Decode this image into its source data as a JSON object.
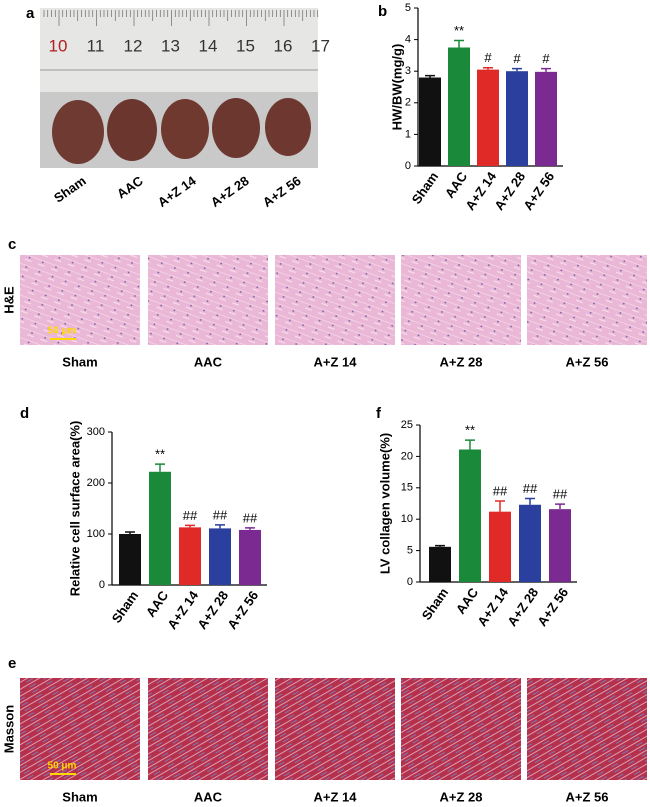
{
  "panel_a": {
    "label": "a",
    "ruler_numbers": [
      "10",
      "11",
      "12",
      "13",
      "14",
      "15",
      "16",
      "17"
    ],
    "groups": [
      "Sham",
      "AAC",
      "A+Z 14",
      "A+Z 28",
      "A+Z 56"
    ]
  },
  "panel_c": {
    "label": "c",
    "stain": "H&E",
    "scale_bar": "50 μm",
    "groups": [
      "Sham",
      "AAC",
      "A+Z 14",
      "A+Z 28",
      "A+Z 56"
    ]
  },
  "panel_e": {
    "label": "e",
    "stain": "Masson",
    "scale_bar": "50 μm",
    "groups": [
      "Sham",
      "AAC",
      "A+Z 14",
      "A+Z 28",
      "A+Z 56"
    ]
  },
  "chart_data": [
    {
      "type": "bar",
      "panel": "b",
      "ylabel": "HW/BW(mg/g)",
      "categories": [
        "Sham",
        "AAC",
        "A+Z 14",
        "A+Z 28",
        "A+Z 56"
      ],
      "values": [
        2.8,
        3.75,
        3.05,
        3.0,
        2.98
      ],
      "errors": [
        0.06,
        0.22,
        0.06,
        0.08,
        0.1
      ],
      "annotations": [
        null,
        "**",
        "#",
        "#",
        "#"
      ],
      "colors": [
        "#111111",
        "#1a8a3a",
        "#e02a27",
        "#2a3f9e",
        "#7b2a92"
      ],
      "ylim": [
        0,
        5
      ],
      "yticks": [
        0,
        1,
        2,
        3,
        4,
        5
      ]
    },
    {
      "type": "bar",
      "panel": "d",
      "ylabel": "Relative cell surface area(%)",
      "categories": [
        "Sham",
        "AAC",
        "A+Z 14",
        "A+Z 28",
        "A+Z 56"
      ],
      "values": [
        100,
        222,
        113,
        111,
        108
      ],
      "errors": [
        4,
        15,
        4,
        7,
        4
      ],
      "annotations": [
        null,
        "**",
        "##",
        "##",
        "##"
      ],
      "colors": [
        "#111111",
        "#1a8a3a",
        "#e02a27",
        "#2a3f9e",
        "#7b2a92"
      ],
      "ylim": [
        0,
        300
      ],
      "yticks": [
        0,
        100,
        200,
        300
      ]
    },
    {
      "type": "bar",
      "panel": "f",
      "ylabel": "LV collagen volume(%)",
      "categories": [
        "Sham",
        "AAC",
        "A+Z 14",
        "A+Z 28",
        "A+Z 56"
      ],
      "values": [
        5.6,
        21.1,
        11.2,
        12.3,
        11.6
      ],
      "errors": [
        0.2,
        1.5,
        1.7,
        1.0,
        0.8
      ],
      "annotations": [
        null,
        "**",
        "##",
        "##",
        "##"
      ],
      "colors": [
        "#111111",
        "#1a8a3a",
        "#e02a27",
        "#2a3f9e",
        "#7b2a92"
      ],
      "ylim": [
        0,
        25
      ],
      "yticks": [
        0,
        5,
        10,
        15,
        20,
        25
      ]
    }
  ]
}
